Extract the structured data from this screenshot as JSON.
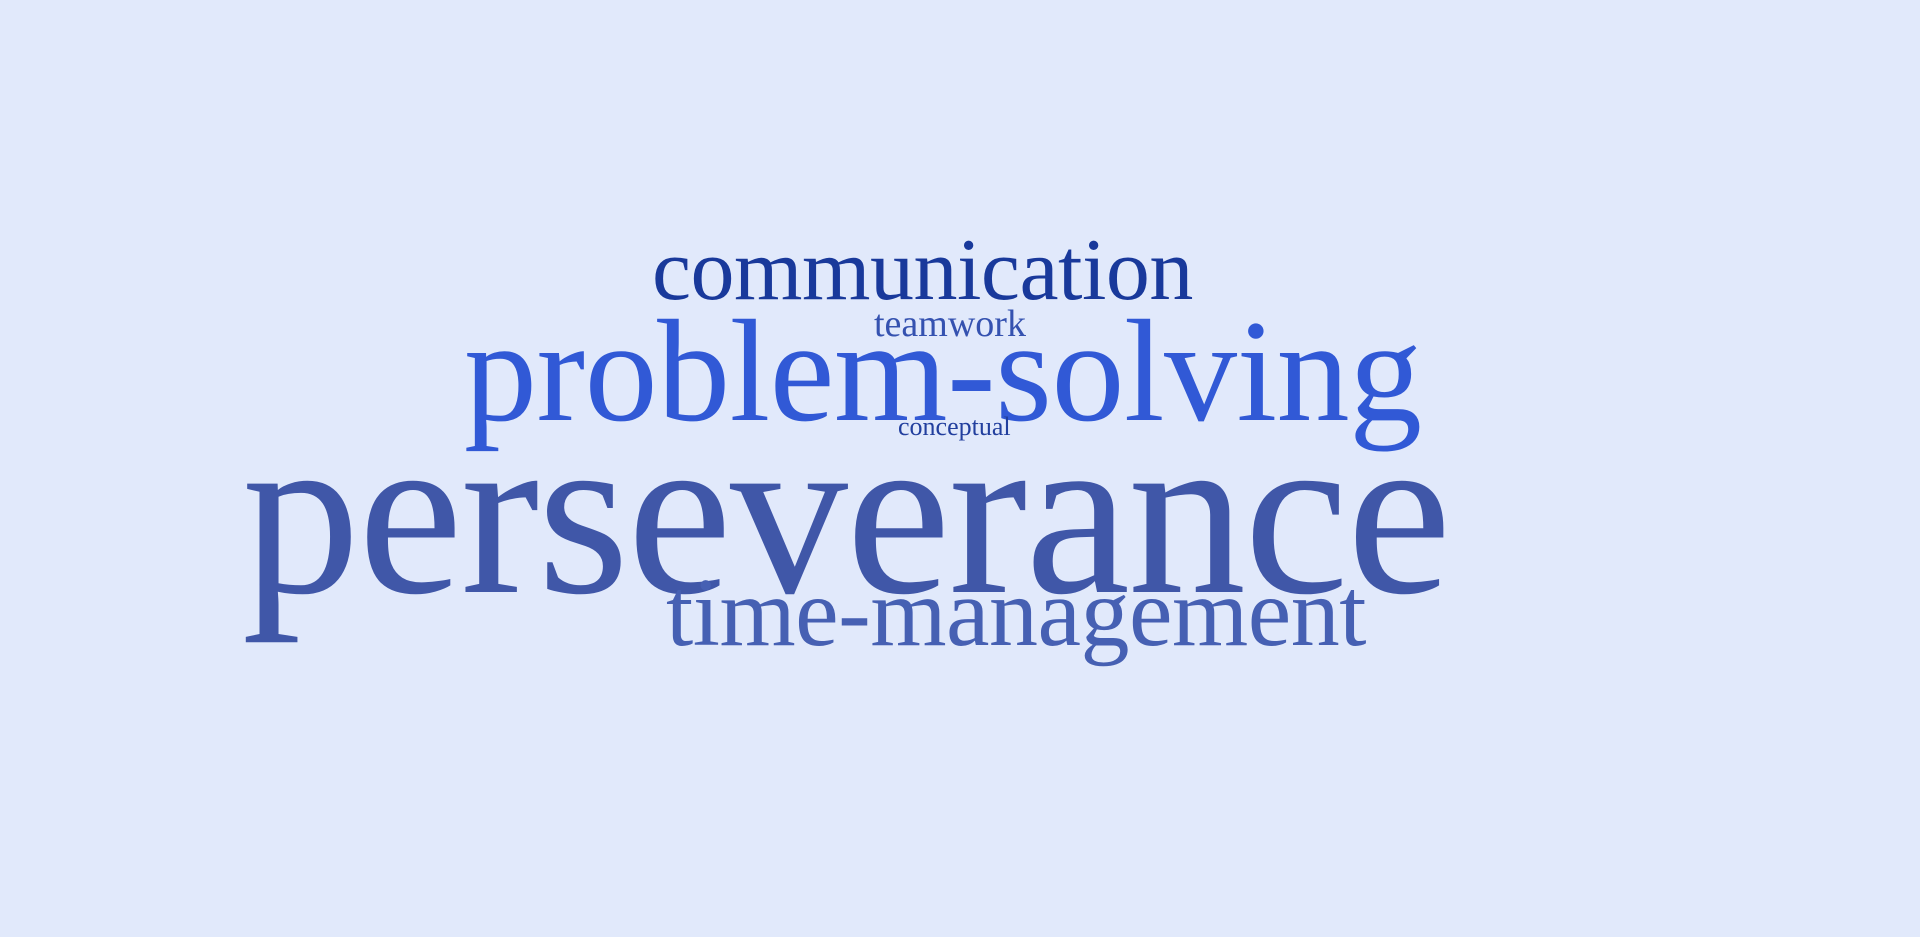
{
  "background": "#e1e9fb",
  "words": [
    {
      "key": "communication",
      "text": "communication",
      "color": "#19399b"
    },
    {
      "key": "teamwork",
      "text": "teamwork",
      "color": "#3552b0"
    },
    {
      "key": "problem_solving",
      "text": "problem-solving",
      "color": "#3159d6"
    },
    {
      "key": "conceptual",
      "text": "conceptual",
      "color": "#223f9e"
    },
    {
      "key": "perseverance",
      "text": "perseverance",
      "color": "#4057a8"
    },
    {
      "key": "time_management",
      "text": "time-management",
      "color": "#4660b3"
    }
  ]
}
